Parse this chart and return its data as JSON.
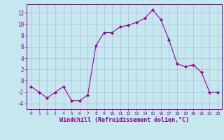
{
  "x": [
    0,
    1,
    2,
    3,
    4,
    5,
    6,
    7,
    8,
    9,
    10,
    11,
    12,
    13,
    14,
    15,
    16,
    17,
    18,
    19,
    20,
    21,
    22,
    23
  ],
  "y": [
    -1,
    -2,
    -3,
    -2,
    -1,
    -3.5,
    -3.5,
    -2.5,
    6.2,
    8.5,
    8.5,
    9.5,
    9.8,
    10.3,
    11.0,
    12.5,
    10.8,
    7.2,
    3.0,
    2.5,
    2.8,
    1.5,
    -2.0,
    -2.0
  ],
  "line_color": "#990099",
  "marker": "D",
  "marker_size": 2.2,
  "bg_color": "#c5e8ef",
  "grid_color": "#aaaacc",
  "xlabel": "Windchill (Refroidissement éolien,°C)",
  "xlabel_color": "#880088",
  "tick_color": "#880088",
  "xlim": [
    -0.5,
    23.5
  ],
  "ylim": [
    -5,
    13.5
  ],
  "yticks": [
    -4,
    -2,
    0,
    2,
    4,
    6,
    8,
    10,
    12
  ],
  "xticks": [
    0,
    1,
    2,
    3,
    4,
    5,
    6,
    7,
    8,
    9,
    10,
    11,
    12,
    13,
    14,
    15,
    16,
    17,
    18,
    19,
    20,
    21,
    22,
    23
  ]
}
